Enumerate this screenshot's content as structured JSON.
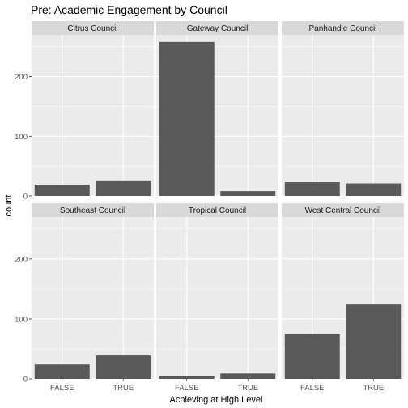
{
  "chart_data": {
    "type": "bar",
    "title": "Pre: Academic Engagement by Council",
    "xlabel": "Achieving at High Level",
    "ylabel": "count",
    "categories": [
      "FALSE",
      "TRUE"
    ],
    "ylim": [
      0,
      270
    ],
    "yticks": [
      0,
      100,
      200
    ],
    "grid": true,
    "colors": {
      "bar": "#595959",
      "panel_background": "#ebebeb",
      "strip_background": "#d9d9d9",
      "gridline": "#ffffff"
    },
    "facets": [
      {
        "name": "Citrus Council",
        "values": [
          19,
          26
        ]
      },
      {
        "name": "Gateway Council",
        "values": [
          258,
          8
        ]
      },
      {
        "name": "Panhandle Council",
        "values": [
          23,
          21
        ]
      },
      {
        "name": "Southeast Council",
        "values": [
          24,
          39
        ]
      },
      {
        "name": "Tropical Council",
        "values": [
          5,
          9
        ]
      },
      {
        "name": "West Central Council",
        "values": [
          75,
          124
        ]
      }
    ]
  }
}
